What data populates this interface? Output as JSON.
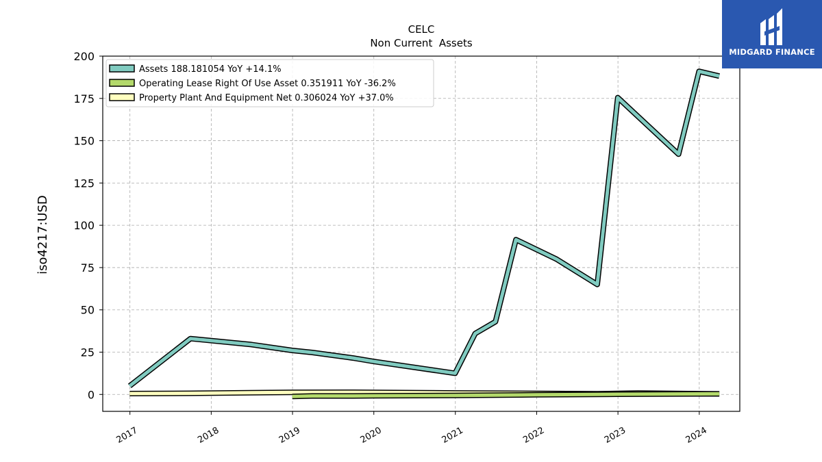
{
  "chart_data": {
    "type": "line",
    "title": "CELC",
    "subtitle": "Non Current  Assets",
    "ylabel": "iso4217:USD",
    "xlabel": "",
    "ylim": [
      -10,
      200
    ],
    "yticks": [
      0,
      25,
      50,
      75,
      100,
      125,
      150,
      175,
      200
    ],
    "xticks": [
      "2017",
      "2018",
      "2019",
      "2020",
      "2021",
      "2022",
      "2023",
      "2024"
    ],
    "grid": true,
    "legend_position": "top-left",
    "series": [
      {
        "name": "Assets",
        "legend": "Assets  188.181054 YoY +14.1%",
        "color": "#80cbc0",
        "points": [
          [
            "2016-12-31",
            5
          ],
          [
            "2017-09-30",
            33
          ],
          [
            "2018-06-30",
            29.5
          ],
          [
            "2018-12-31",
            26
          ],
          [
            "2019-03-31",
            24.8
          ],
          [
            "2019-09-30",
            21.5
          ],
          [
            "2019-12-31",
            19.5
          ],
          [
            "2020-12-31",
            12.5
          ],
          [
            "2021-03-31",
            36
          ],
          [
            "2021-06-30",
            43
          ],
          [
            "2021-09-30",
            91.5
          ],
          [
            "2022-03-31",
            80
          ],
          [
            "2022-09-30",
            65
          ],
          [
            "2022-12-31",
            175.5
          ],
          [
            "2023-09-30",
            142
          ],
          [
            "2023-12-31",
            191
          ],
          [
            "2024-03-31",
            188.18
          ]
        ]
      },
      {
        "name": "Operating Lease Right Of Use Asset",
        "legend": "Operating Lease Right Of Use Asset  0.351911 YoY -36.2%",
        "color": "#b3d96b",
        "points": [
          [
            "2018-12-31",
            -1.2
          ],
          [
            "2019-03-31",
            -0.9
          ],
          [
            "2019-09-30",
            -0.9
          ],
          [
            "2019-12-31",
            -0.8
          ],
          [
            "2020-12-31",
            -0.6
          ],
          [
            "2021-12-31",
            -0.2
          ],
          [
            "2022-12-31",
            0.1
          ],
          [
            "2023-12-31",
            0.3
          ],
          [
            "2024-03-31",
            0.35
          ]
        ]
      },
      {
        "name": "Property Plant And Equipment Net",
        "legend": "Property Plant And Equipment Net  0.306024 YoY +37.0%",
        "color": "#ffffbf",
        "points": [
          [
            "2016-12-31",
            0.5
          ],
          [
            "2017-09-30",
            0.7
          ],
          [
            "2018-06-30",
            1.0
          ],
          [
            "2018-12-31",
            1.2
          ],
          [
            "2019-09-30",
            1.3
          ],
          [
            "2020-12-31",
            0.9
          ],
          [
            "2021-12-31",
            0.6
          ],
          [
            "2022-09-30",
            0.4
          ],
          [
            "2023-03-31",
            0.8
          ],
          [
            "2024-03-31",
            0.31
          ]
        ]
      }
    ]
  },
  "branding": {
    "logo_text": "MIDGARD FINANCE",
    "logo_color": "#2a58b0"
  }
}
